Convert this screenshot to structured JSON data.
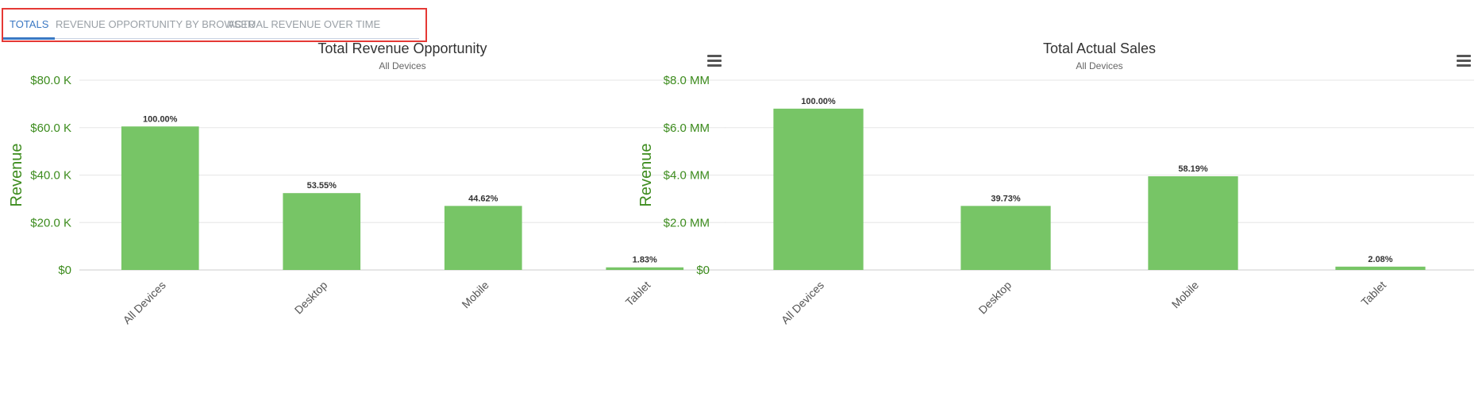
{
  "tabs": [
    {
      "label": "TOTALS",
      "active": true
    },
    {
      "label": "REVENUE OPPORTUNITY BY BROWSER",
      "active": false
    },
    {
      "label": "ACTUAL REVENUE OVER TIME",
      "active": false
    }
  ],
  "colors": {
    "bar": "#77c566",
    "axis_text": "#3d8c1e",
    "grid": "#e6e6e6",
    "tab_active": "#3b78c3"
  },
  "menu_icon": "hamburger-menu-icon",
  "chart_data": [
    {
      "type": "bar",
      "title": "Total Revenue Opportunity",
      "subtitle": "All Devices",
      "ylabel": "Revenue",
      "xlabel": "",
      "categories": [
        "All Devices",
        "Desktop",
        "Mobile",
        "Tablet"
      ],
      "values": [
        60500,
        32400,
        27000,
        1100
      ],
      "data_labels": [
        "100.00%",
        "53.55%",
        "44.62%",
        "1.83%"
      ],
      "ylim": [
        0,
        80000
      ],
      "yticks": [
        0,
        20000,
        40000,
        60000,
        80000
      ],
      "ytick_labels": [
        "$0",
        "$20.0 K",
        "$40.0 K",
        "$60.0 K",
        "$80.0 K"
      ],
      "grid": true,
      "legend": "none"
    },
    {
      "type": "bar",
      "title": "Total Actual Sales",
      "subtitle": "All Devices",
      "ylabel": "Revenue",
      "xlabel": "",
      "categories": [
        "All Devices",
        "Desktop",
        "Mobile",
        "Tablet"
      ],
      "values": [
        6800000,
        2700000,
        3950000,
        140000
      ],
      "data_labels": [
        "100.00%",
        "39.73%",
        "58.19%",
        "2.08%"
      ],
      "ylim": [
        0,
        8000000
      ],
      "yticks": [
        0,
        2000000,
        4000000,
        6000000,
        8000000
      ],
      "ytick_labels": [
        "$0",
        "$2.0 MM",
        "$4.0 MM",
        "$6.0 MM",
        "$8.0 MM"
      ],
      "grid": true,
      "legend": "none"
    }
  ]
}
